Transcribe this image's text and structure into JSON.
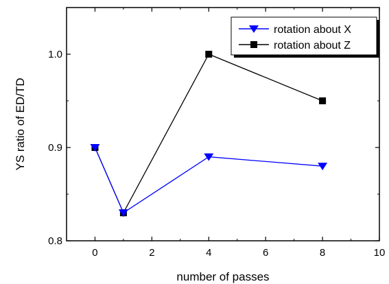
{
  "chart_data": {
    "type": "line",
    "xlabel": "number of passes",
    "ylabel": "YS ratio of ED/TD",
    "xlim": [
      -1,
      10
    ],
    "ylim": [
      0.8,
      1.05
    ],
    "xticks": [
      0,
      2,
      4,
      6,
      8,
      10
    ],
    "yticks": [
      0.8,
      0.9,
      1.0
    ],
    "xtick_labels": [
      "0",
      "2",
      "4",
      "6",
      "8",
      "10"
    ],
    "ytick_labels": [
      "0.8",
      "0.9",
      "1.0"
    ],
    "legend_position": "top-right",
    "grid": false,
    "series": [
      {
        "name": "rotation about X",
        "color": "#0000ff",
        "marker": "triangle-down",
        "x": [
          0,
          1,
          4,
          8
        ],
        "y": [
          0.9,
          0.83,
          0.89,
          0.88
        ]
      },
      {
        "name": "rotation about Z",
        "color": "#000000",
        "marker": "square",
        "x": [
          0,
          1,
          4,
          8
        ],
        "y": [
          0.9,
          0.83,
          1.0,
          0.95
        ]
      }
    ]
  }
}
